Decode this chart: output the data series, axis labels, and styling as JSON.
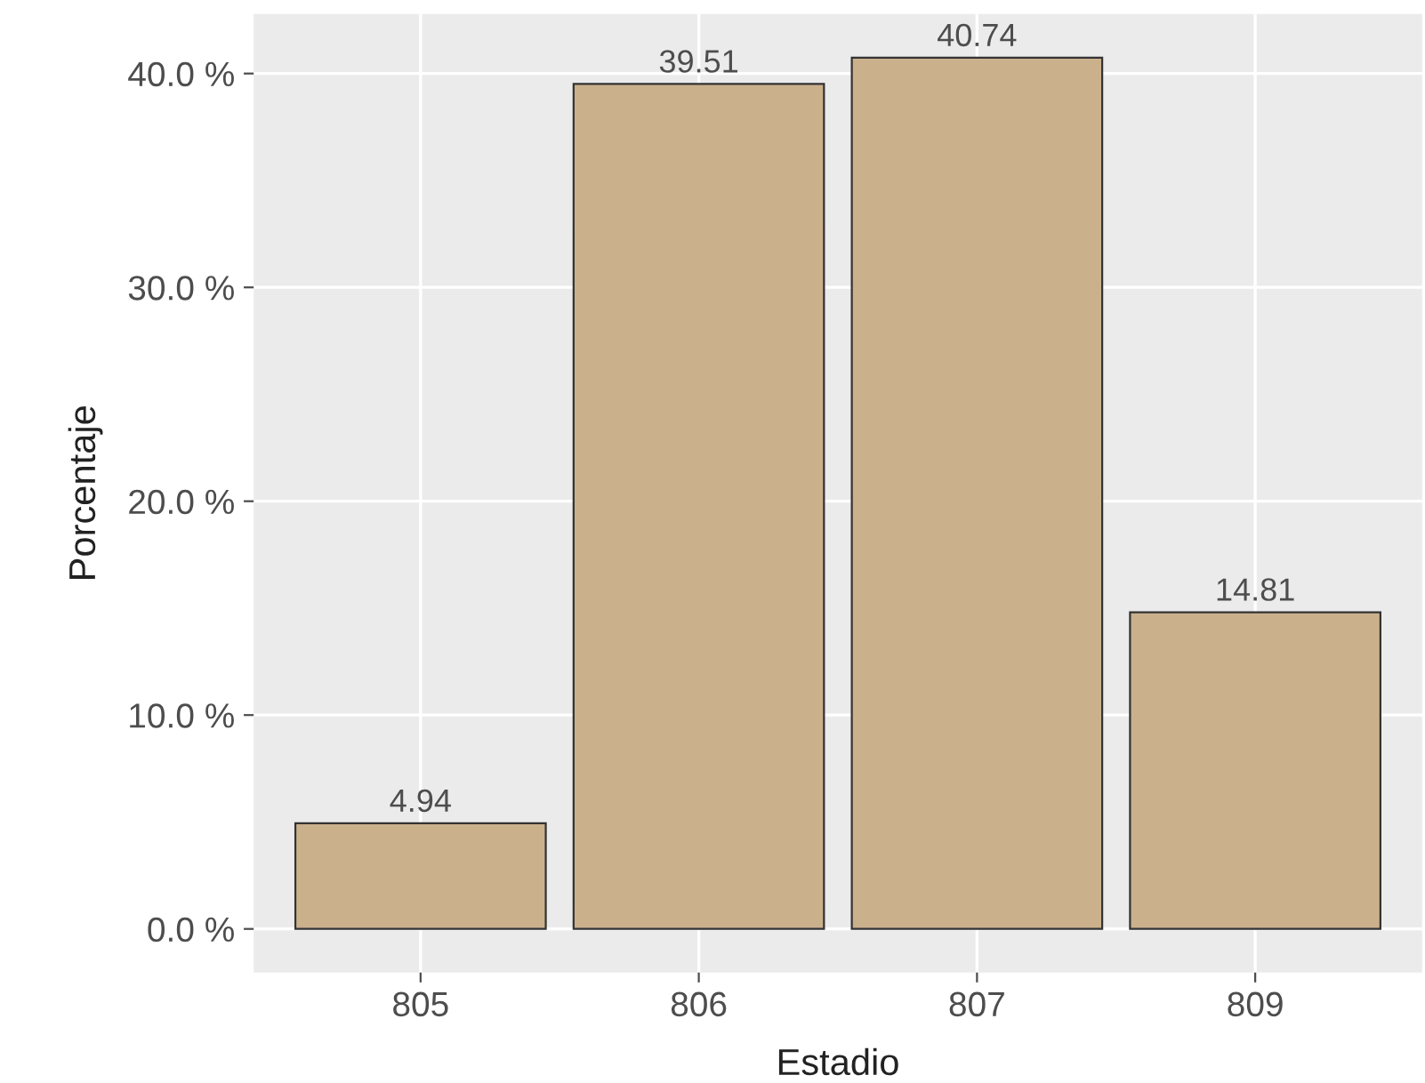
{
  "chart_data": {
    "type": "bar",
    "xlabel": "Estadio",
    "ylabel": "Porcentaje",
    "categories": [
      "805",
      "806",
      "807",
      "809"
    ],
    "values": [
      4.94,
      39.51,
      40.74,
      14.81
    ],
    "color": "#cbb08c",
    "ylim": [
      -2.04,
      42.78
    ],
    "yticks": [
      {
        "value": 0,
        "label": "0.0 %"
      },
      {
        "value": 10,
        "label": "10.0 %"
      },
      {
        "value": 20,
        "label": "20.0 %"
      },
      {
        "value": 30,
        "label": "30.0 %"
      },
      {
        "value": 40,
        "label": "40.0 %"
      }
    ],
    "grid": true,
    "data_labels": true
  }
}
